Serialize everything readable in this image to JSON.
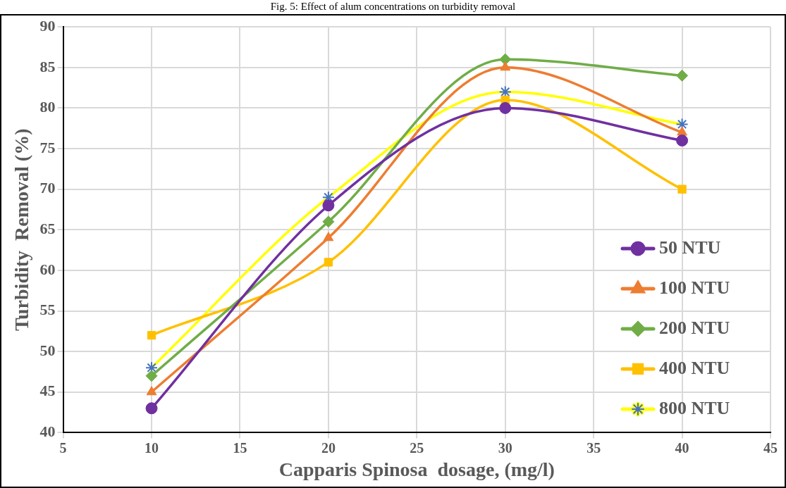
{
  "chart_data": {
    "type": "line",
    "title": "Fig. 5: Effect of alum concentrations on turbidity removal",
    "xlabel": "Capparis Spinosa  dosage, (mg/l)",
    "ylabel": "Turbidity  Removal (%)",
    "x": [
      10,
      20,
      30,
      40
    ],
    "xlim": [
      5,
      45
    ],
    "xticks": [
      5,
      10,
      15,
      20,
      25,
      30,
      35,
      40,
      45
    ],
    "ylim": [
      40,
      90
    ],
    "yticks": [
      40,
      45,
      50,
      55,
      60,
      65,
      70,
      75,
      80,
      85,
      90
    ],
    "grid": true,
    "legend": "bottom right",
    "series": [
      {
        "name": "50 NTU",
        "color": "#7030a0",
        "marker": "circle",
        "values": [
          43,
          68,
          80,
          76
        ]
      },
      {
        "name": "100 NTU",
        "color": "#ed7d31",
        "marker": "triangle",
        "values": [
          45,
          64,
          85,
          77
        ]
      },
      {
        "name": "200 NTU",
        "color": "#70ad47",
        "marker": "diamond",
        "values": [
          47,
          66,
          86,
          84
        ]
      },
      {
        "name": "400 NTU",
        "color": "#ffc000",
        "marker": "square",
        "values": [
          52,
          61,
          81,
          70
        ]
      },
      {
        "name": "800 NTU",
        "color": "#ffff00",
        "marker": "cross",
        "values": [
          48,
          69,
          82,
          78
        ]
      }
    ]
  }
}
